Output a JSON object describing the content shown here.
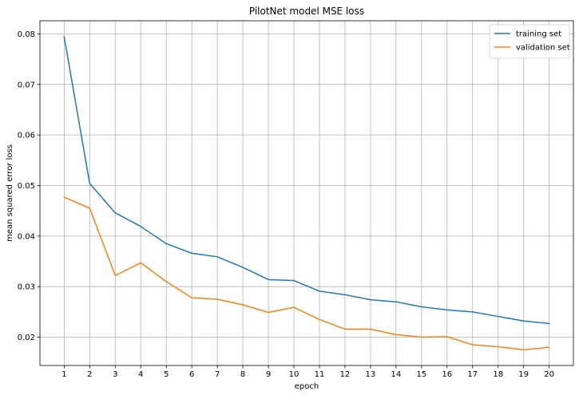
{
  "chart_data": {
    "type": "line",
    "title": "PilotNet model MSE loss",
    "xlabel": "epoch",
    "ylabel": "mean squared error loss",
    "x": [
      1,
      2,
      3,
      4,
      5,
      6,
      7,
      8,
      9,
      10,
      11,
      12,
      13,
      14,
      15,
      16,
      17,
      18,
      19,
      20
    ],
    "series": [
      {
        "name": "training set",
        "color": "#1f77b4",
        "values": [
          0.0794,
          0.0504,
          0.0446,
          0.0419,
          0.0385,
          0.0366,
          0.0359,
          0.0338,
          0.0314,
          0.0312,
          0.0291,
          0.0284,
          0.0274,
          0.027,
          0.026,
          0.0254,
          0.025,
          0.0241,
          0.0232,
          0.0227
        ]
      },
      {
        "name": "validation set",
        "color": "#ff7f0e",
        "values": [
          0.0477,
          0.0455,
          0.0322,
          0.0347,
          0.031,
          0.0278,
          0.0275,
          0.0264,
          0.0249,
          0.0259,
          0.0235,
          0.0216,
          0.0216,
          0.0205,
          0.02,
          0.0201,
          0.0185,
          0.0181,
          0.0175,
          0.018
        ]
      }
    ],
    "xlim": [
      0.05,
      20.95
    ],
    "ylim": [
      0.0144,
      0.0826
    ],
    "yticks": [
      0.02,
      0.03,
      0.04,
      0.05,
      0.06,
      0.07,
      0.08
    ],
    "ytick_labels": [
      "0.02",
      "0.03",
      "0.04",
      "0.05",
      "0.06",
      "0.07",
      "0.08"
    ],
    "xticks": [
      1,
      2,
      3,
      4,
      5,
      6,
      7,
      8,
      9,
      10,
      11,
      12,
      13,
      14,
      15,
      16,
      17,
      18,
      19,
      20
    ],
    "xtick_labels": [
      "1",
      "2",
      "3",
      "4",
      "5",
      "6",
      "7",
      "8",
      "9",
      "10",
      "11",
      "12",
      "13",
      "14",
      "15",
      "16",
      "17",
      "18",
      "19",
      "20"
    ],
    "grid": true,
    "legend_position": "top-right"
  }
}
